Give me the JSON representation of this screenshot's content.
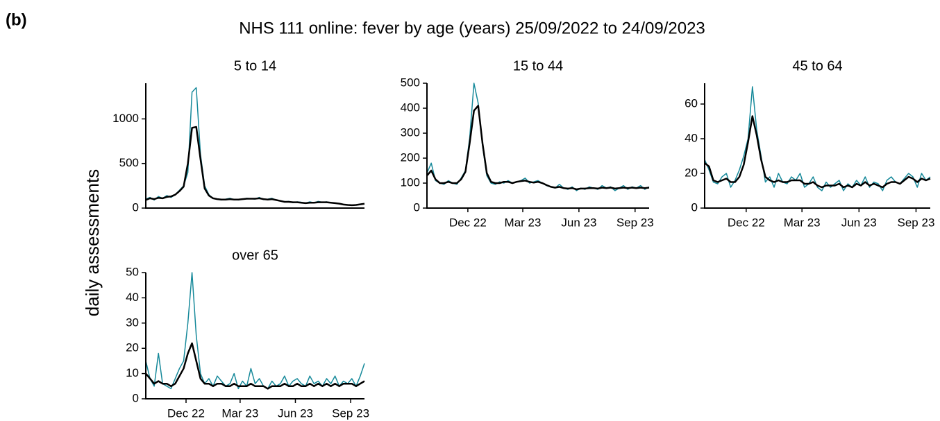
{
  "panel_label": "(b)",
  "title": "NHS 111 online: fever by age (years) 25/09/2022 to 24/09/2023",
  "y_label": "daily assessments",
  "chart_data": [
    {
      "type": "line",
      "title": "5 to 14",
      "x": [
        "2022-09-25",
        "2022-10-02",
        "2022-10-09",
        "2022-10-16",
        "2022-10-23",
        "2022-10-30",
        "2022-11-06",
        "2022-11-13",
        "2022-11-20",
        "2022-11-27",
        "2022-12-04",
        "2022-12-11",
        "2022-12-18",
        "2022-12-25",
        "2023-01-01",
        "2023-01-08",
        "2023-01-15",
        "2023-01-22",
        "2023-01-29",
        "2023-02-05",
        "2023-02-12",
        "2023-02-19",
        "2023-02-26",
        "2023-03-05",
        "2023-03-12",
        "2023-03-19",
        "2023-03-26",
        "2023-04-02",
        "2023-04-09",
        "2023-04-16",
        "2023-04-23",
        "2023-04-30",
        "2023-05-07",
        "2023-05-14",
        "2023-05-21",
        "2023-05-28",
        "2023-06-04",
        "2023-06-11",
        "2023-06-18",
        "2023-06-25",
        "2023-07-02",
        "2023-07-09",
        "2023-07-16",
        "2023-07-23",
        "2023-07-30",
        "2023-08-06",
        "2023-08-13",
        "2023-08-20",
        "2023-08-27",
        "2023-09-03",
        "2023-09-10",
        "2023-09-17",
        "2023-09-24"
      ],
      "xlim": [
        "2022-09-25",
        "2023-09-24"
      ],
      "ylim": [
        0,
        1400
      ],
      "yticks": [
        0,
        500,
        1000
      ],
      "series": [
        {
          "color": "#16899a",
          "width": 1.5,
          "values": [
            100,
            120,
            90,
            130,
            110,
            140,
            120,
            150,
            200,
            250,
            400,
            1300,
            1350,
            600,
            250,
            150,
            110,
            100,
            90,
            100,
            110,
            95,
            90,
            100,
            110,
            105,
            100,
            120,
            95,
            100,
            110,
            90,
            80,
            70,
            75,
            60,
            70,
            65,
            55,
            70,
            60,
            75,
            65,
            70,
            60,
            55,
            50,
            40,
            35,
            30,
            35,
            45,
            50
          ]
        },
        {
          "color": "#000000",
          "width": 2.5,
          "values": [
            90,
            110,
            100,
            115,
            110,
            125,
            130,
            150,
            190,
            240,
            500,
            900,
            910,
            550,
            220,
            140,
            110,
            100,
            95,
            95,
            100,
            95,
            95,
            100,
            105,
            105,
            105,
            110,
            100,
            95,
            100,
            90,
            80,
            70,
            70,
            65,
            65,
            60,
            55,
            60,
            60,
            65,
            65,
            65,
            60,
            55,
            50,
            40,
            35,
            32,
            35,
            42,
            48
          ]
        }
      ]
    },
    {
      "type": "line",
      "title": "15 to 44",
      "x": [
        "2022-09-25",
        "2022-10-02",
        "2022-10-09",
        "2022-10-16",
        "2022-10-23",
        "2022-10-30",
        "2022-11-06",
        "2022-11-13",
        "2022-11-20",
        "2022-11-27",
        "2022-12-04",
        "2022-12-11",
        "2022-12-18",
        "2022-12-25",
        "2023-01-01",
        "2023-01-08",
        "2023-01-15",
        "2023-01-22",
        "2023-01-29",
        "2023-02-05",
        "2023-02-12",
        "2023-02-19",
        "2023-02-26",
        "2023-03-05",
        "2023-03-12",
        "2023-03-19",
        "2023-03-26",
        "2023-04-02",
        "2023-04-09",
        "2023-04-16",
        "2023-04-23",
        "2023-04-30",
        "2023-05-07",
        "2023-05-14",
        "2023-05-21",
        "2023-05-28",
        "2023-06-04",
        "2023-06-11",
        "2023-06-18",
        "2023-06-25",
        "2023-07-02",
        "2023-07-09",
        "2023-07-16",
        "2023-07-23",
        "2023-07-30",
        "2023-08-06",
        "2023-08-13",
        "2023-08-20",
        "2023-08-27",
        "2023-09-03",
        "2023-09-10",
        "2023-09-17",
        "2023-09-24"
      ],
      "xlim": [
        "2022-09-25",
        "2023-09-24"
      ],
      "ylim": [
        0,
        500
      ],
      "yticks": [
        0,
        100,
        200,
        300,
        400,
        500
      ],
      "xticks": [
        {
          "value": "2022-12-01",
          "label": "Dec 22"
        },
        {
          "value": "2023-03-01",
          "label": "Mar 23"
        },
        {
          "value": "2023-06-01",
          "label": "Jun 23"
        },
        {
          "value": "2023-09-01",
          "label": "Sep 23"
        }
      ],
      "series": [
        {
          "color": "#16899a",
          "width": 1.5,
          "values": [
            140,
            180,
            110,
            100,
            95,
            110,
            100,
            95,
            120,
            150,
            280,
            500,
            420,
            250,
            130,
            100,
            95,
            105,
            100,
            110,
            100,
            105,
            110,
            120,
            100,
            105,
            110,
            100,
            90,
            85,
            80,
            95,
            80,
            75,
            85,
            70,
            80,
            75,
            85,
            80,
            75,
            90,
            80,
            85,
            70,
            80,
            90,
            75,
            85,
            80,
            90,
            75,
            85
          ]
        },
        {
          "color": "#000000",
          "width": 2.5,
          "values": [
            130,
            150,
            115,
            100,
            100,
            105,
            100,
            100,
            115,
            145,
            260,
            390,
            410,
            260,
            140,
            105,
            100,
            100,
            105,
            105,
            100,
            105,
            108,
            110,
            105,
            102,
            105,
            100,
            92,
            85,
            82,
            85,
            80,
            78,
            80,
            75,
            78,
            78,
            80,
            80,
            78,
            82,
            80,
            82,
            78,
            80,
            82,
            80,
            82,
            80,
            82,
            80,
            82
          ]
        }
      ]
    },
    {
      "type": "line",
      "title": "45 to 64",
      "x": [
        "2022-09-25",
        "2022-10-02",
        "2022-10-09",
        "2022-10-16",
        "2022-10-23",
        "2022-10-30",
        "2022-11-06",
        "2022-11-13",
        "2022-11-20",
        "2022-11-27",
        "2022-12-04",
        "2022-12-11",
        "2022-12-18",
        "2022-12-25",
        "2023-01-01",
        "2023-01-08",
        "2023-01-15",
        "2023-01-22",
        "2023-01-29",
        "2023-02-05",
        "2023-02-12",
        "2023-02-19",
        "2023-02-26",
        "2023-03-05",
        "2023-03-12",
        "2023-03-19",
        "2023-03-26",
        "2023-04-02",
        "2023-04-09",
        "2023-04-16",
        "2023-04-23",
        "2023-04-30",
        "2023-05-07",
        "2023-05-14",
        "2023-05-21",
        "2023-05-28",
        "2023-06-04",
        "2023-06-11",
        "2023-06-18",
        "2023-06-25",
        "2023-07-02",
        "2023-07-09",
        "2023-07-16",
        "2023-07-23",
        "2023-07-30",
        "2023-08-06",
        "2023-08-13",
        "2023-08-20",
        "2023-08-27",
        "2023-09-03",
        "2023-09-10",
        "2023-09-17",
        "2023-09-24"
      ],
      "xlim": [
        "2022-09-25",
        "2023-09-24"
      ],
      "ylim": [
        0,
        72
      ],
      "yticks": [
        0,
        20,
        40,
        60
      ],
      "xticks": [
        {
          "value": "2022-12-01",
          "label": "Dec 22"
        },
        {
          "value": "2023-03-01",
          "label": "Mar 23"
        },
        {
          "value": "2023-06-01",
          "label": "Jun 23"
        },
        {
          "value": "2023-09-01",
          "label": "Sep 23"
        }
      ],
      "series": [
        {
          "color": "#16899a",
          "width": 1.5,
          "values": [
            28,
            22,
            15,
            14,
            18,
            20,
            12,
            16,
            22,
            30,
            40,
            70,
            45,
            30,
            15,
            18,
            12,
            20,
            15,
            14,
            18,
            16,
            20,
            12,
            14,
            18,
            12,
            10,
            15,
            12,
            14,
            16,
            10,
            14,
            12,
            16,
            13,
            18,
            12,
            15,
            14,
            10,
            16,
            18,
            15,
            14,
            17,
            20,
            18,
            12,
            20,
            16,
            18
          ]
        },
        {
          "color": "#000000",
          "width": 2.5,
          "values": [
            26,
            24,
            16,
            15,
            16,
            17,
            15,
            15,
            18,
            25,
            38,
            53,
            42,
            28,
            18,
            16,
            15,
            16,
            15,
            15,
            16,
            16,
            16,
            14,
            14,
            15,
            13,
            12,
            13,
            13,
            13,
            14,
            12,
            13,
            12,
            14,
            13,
            15,
            13,
            14,
            13,
            12,
            14,
            15,
            15,
            14,
            16,
            18,
            17,
            15,
            17,
            16,
            17
          ]
        }
      ]
    },
    {
      "type": "line",
      "title": "over 65",
      "x": [
        "2022-09-25",
        "2022-10-02",
        "2022-10-09",
        "2022-10-16",
        "2022-10-23",
        "2022-10-30",
        "2022-11-06",
        "2022-11-13",
        "2022-11-20",
        "2022-11-27",
        "2022-12-04",
        "2022-12-11",
        "2022-12-18",
        "2022-12-25",
        "2023-01-01",
        "2023-01-08",
        "2023-01-15",
        "2023-01-22",
        "2023-01-29",
        "2023-02-05",
        "2023-02-12",
        "2023-02-19",
        "2023-02-26",
        "2023-03-05",
        "2023-03-12",
        "2023-03-19",
        "2023-03-26",
        "2023-04-02",
        "2023-04-09",
        "2023-04-16",
        "2023-04-23",
        "2023-04-30",
        "2023-05-07",
        "2023-05-14",
        "2023-05-21",
        "2023-05-28",
        "2023-06-04",
        "2023-06-11",
        "2023-06-18",
        "2023-06-25",
        "2023-07-02",
        "2023-07-09",
        "2023-07-16",
        "2023-07-23",
        "2023-07-30",
        "2023-08-06",
        "2023-08-13",
        "2023-08-20",
        "2023-08-27",
        "2023-09-03",
        "2023-09-10",
        "2023-09-17",
        "2023-09-24"
      ],
      "xlim": [
        "2022-09-25",
        "2023-09-24"
      ],
      "ylim": [
        0,
        50
      ],
      "yticks": [
        0,
        10,
        20,
        30,
        40,
        50
      ],
      "xticks": [
        {
          "value": "2022-12-01",
          "label": "Dec 22"
        },
        {
          "value": "2023-03-01",
          "label": "Mar 23"
        },
        {
          "value": "2023-06-01",
          "label": "Jun 23"
        },
        {
          "value": "2023-09-01",
          "label": "Sep 23"
        }
      ],
      "series": [
        {
          "color": "#16899a",
          "width": 1.5,
          "values": [
            15,
            8,
            5,
            18,
            6,
            5,
            4,
            8,
            12,
            15,
            30,
            50,
            25,
            10,
            6,
            8,
            5,
            9,
            7,
            5,
            6,
            10,
            4,
            7,
            5,
            12,
            6,
            8,
            5,
            4,
            7,
            5,
            6,
            9,
            5,
            7,
            8,
            6,
            5,
            9,
            6,
            7,
            5,
            8,
            6,
            9,
            5,
            7,
            6,
            8,
            5,
            9,
            14
          ]
        },
        {
          "color": "#000000",
          "width": 2.5,
          "values": [
            10,
            8,
            6,
            7,
            6,
            6,
            5,
            6,
            9,
            12,
            18,
            22,
            15,
            8,
            6,
            6,
            5,
            6,
            6,
            5,
            5,
            6,
            5,
            5,
            5,
            6,
            5,
            5,
            5,
            4,
            5,
            5,
            5,
            6,
            5,
            5,
            6,
            5,
            5,
            6,
            5,
            6,
            5,
            6,
            5,
            6,
            5,
            6,
            6,
            6,
            5,
            6,
            7
          ]
        }
      ]
    }
  ]
}
